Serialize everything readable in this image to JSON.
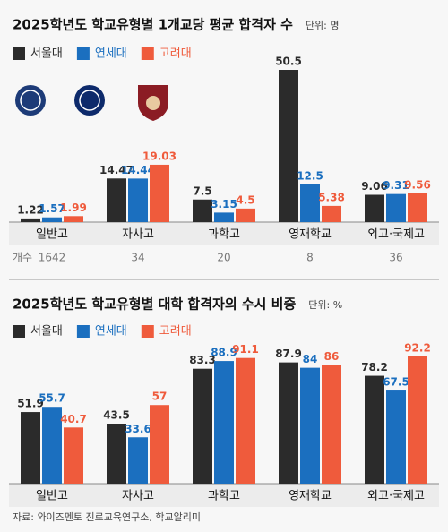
{
  "chart_data": [
    {
      "type": "bar",
      "title": "2025학년도 학교유형별 1개교당 평균 합격자 수",
      "unit": "단위: 명",
      "categories": [
        "일반고",
        "자사고",
        "과학고",
        "영재학교",
        "외고·국제고"
      ],
      "series": [
        {
          "name": "서울대",
          "color": "#2b2b2b",
          "values": [
            1.22,
            14.47,
            7.5,
            50.5,
            9.06
          ]
        },
        {
          "name": "연세대",
          "color": "#1b6fbf",
          "values": [
            1.57,
            14.44,
            3.15,
            12.5,
            9.31
          ]
        },
        {
          "name": "고려대",
          "color": "#ef5b3c",
          "values": [
            1.99,
            19.03,
            4.5,
            5.38,
            9.56
          ]
        }
      ],
      "counts_label": "개수",
      "counts": [
        1642,
        34,
        20,
        8,
        36
      ]
    },
    {
      "type": "bar",
      "title": "2025학년도 학교유형별 대학 합격자의 수시 비중",
      "unit": "단위: %",
      "categories": [
        "일반고",
        "자사고",
        "과학고",
        "영재학교",
        "외고·국제고"
      ],
      "series": [
        {
          "name": "서울대",
          "color": "#2b2b2b",
          "values": [
            51.9,
            43.5,
            83.3,
            87.9,
            78.2
          ]
        },
        {
          "name": "연세대",
          "color": "#1b6fbf",
          "values": [
            55.7,
            33.6,
            88.9,
            84,
            67.5
          ]
        },
        {
          "name": "고려대",
          "color": "#ef5b3c",
          "values": [
            40.7,
            57,
            91.1,
            86,
            92.2
          ]
        }
      ]
    }
  ],
  "source": "자료: 와이즈멘토 진로교육연구소, 학교알리미"
}
